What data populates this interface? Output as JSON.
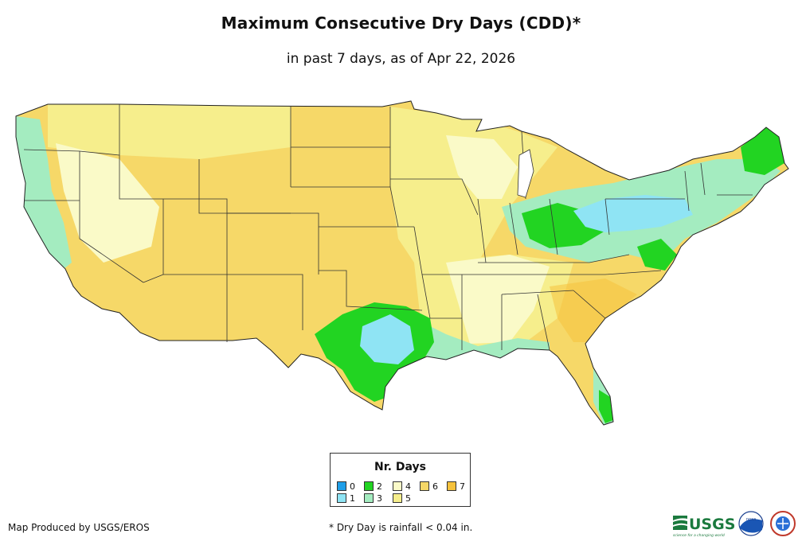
{
  "title": "Maximum Consecutive Dry Days (CDD)*",
  "subtitle": "in past 7 days, as of Apr 22, 2026",
  "legend": {
    "title": "Nr. Days",
    "items": [
      {
        "label": "0",
        "color": "#1e9ee8"
      },
      {
        "label": "1",
        "color": "#8fe4f4"
      },
      {
        "label": "2",
        "color": "#22d422"
      },
      {
        "label": "3",
        "color": "#a4ecc0"
      },
      {
        "label": "4",
        "color": "#fafac8"
      },
      {
        "label": "5",
        "color": "#f6ee8c"
      },
      {
        "label": "6",
        "color": "#f6d868"
      },
      {
        "label": "7",
        "color": "#f6c23c"
      }
    ]
  },
  "footer": {
    "produced_by": "Map Produced by USGS/EROS",
    "note": "* Dry Day is rainfall < 0.04 in."
  },
  "logos": {
    "usgs": "USGS",
    "usgs_tagline": "science for a changing world",
    "noaa": "noaa",
    "nws_icon": "national-weather-service-icon"
  }
}
